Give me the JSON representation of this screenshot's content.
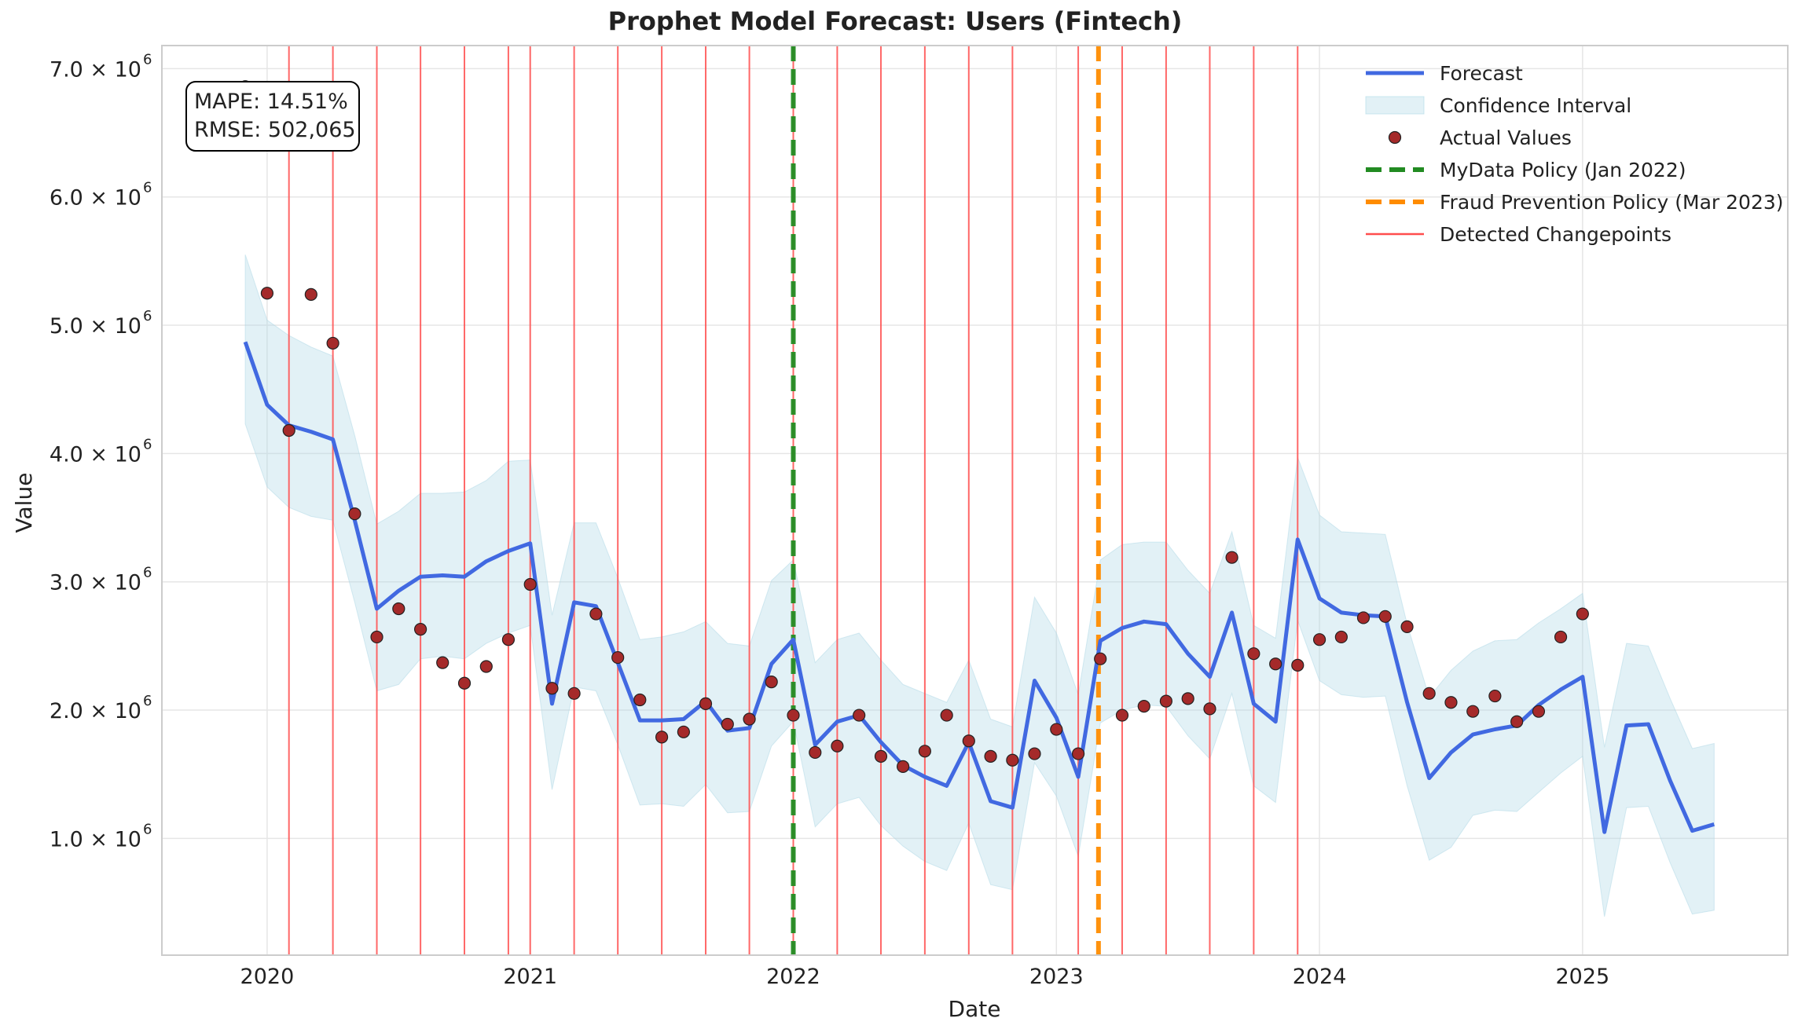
{
  "chart_data": {
    "type": "line",
    "title": "Prophet Model Forecast: Users (Fintech)",
    "xlabel": "Date",
    "ylabel": "Value",
    "xlim": [
      2019.6,
      2025.78
    ],
    "ylim": [
      90000,
      7180000
    ],
    "x_ticks": [
      {
        "value": 2020.0,
        "label": "2020"
      },
      {
        "value": 2021.0,
        "label": "2021"
      },
      {
        "value": 2022.0,
        "label": "2022"
      },
      {
        "value": 2023.0,
        "label": "2023"
      },
      {
        "value": 2024.0,
        "label": "2024"
      },
      {
        "value": 2025.0,
        "label": "2025"
      }
    ],
    "y_ticks": [
      {
        "value": 1000000,
        "label": "1.0 × 10",
        "exp": "6"
      },
      {
        "value": 2000000,
        "label": "2.0 × 10",
        "exp": "6"
      },
      {
        "value": 3000000,
        "label": "3.0 × 10",
        "exp": "6"
      },
      {
        "value": 4000000,
        "label": "4.0 × 10",
        "exp": "6"
      },
      {
        "value": 5000000,
        "label": "5.0 × 10",
        "exp": "6"
      },
      {
        "value": 6000000,
        "label": "6.0 × 10",
        "exp": "6"
      },
      {
        "value": 7000000,
        "label": "7.0 × 10",
        "exp": "6"
      }
    ],
    "series": [
      {
        "name": "Forecast",
        "color": "#4169e1",
        "x": [
          2019.917,
          2020.0,
          2020.083,
          2020.167,
          2020.25,
          2020.333,
          2020.417,
          2020.5,
          2020.583,
          2020.667,
          2020.75,
          2020.833,
          2020.917,
          2021.0,
          2021.083,
          2021.167,
          2021.25,
          2021.333,
          2021.417,
          2021.5,
          2021.583,
          2021.667,
          2021.75,
          2021.833,
          2021.917,
          2022.0,
          2022.083,
          2022.167,
          2022.25,
          2022.333,
          2022.417,
          2022.5,
          2022.583,
          2022.667,
          2022.75,
          2022.833,
          2022.917,
          2023.0,
          2023.083,
          2023.167,
          2023.25,
          2023.333,
          2023.417,
          2023.5,
          2023.583,
          2023.667,
          2023.75,
          2023.833,
          2023.917,
          2024.0,
          2024.083,
          2024.167,
          2024.25,
          2024.333,
          2024.417,
          2024.5,
          2024.583,
          2024.667,
          2024.75,
          2024.833,
          2024.917,
          2025.0,
          2025.083,
          2025.167,
          2025.25,
          2025.333,
          2025.417,
          2025.5
        ],
        "y": [
          4870000,
          4380000,
          4220000,
          4170000,
          4110000,
          3480000,
          2790000,
          2930000,
          3040000,
          3050000,
          3040000,
          3160000,
          3240000,
          3300000,
          2050000,
          2840000,
          2810000,
          2370000,
          1920000,
          1920000,
          1930000,
          2070000,
          1840000,
          1860000,
          2360000,
          2550000,
          1730000,
          1910000,
          1960000,
          1750000,
          1570000,
          1480000,
          1410000,
          1750000,
          1290000,
          1240000,
          2230000,
          1940000,
          1480000,
          2540000,
          2640000,
          2690000,
          2670000,
          2440000,
          2260000,
          2760000,
          2050000,
          1910000,
          3330000,
          2870000,
          2760000,
          2740000,
          2730000,
          2060000,
          1470000,
          1670000,
          1810000,
          1850000,
          1880000,
          2040000,
          2160000,
          2260000,
          1050000,
          1880000,
          1890000,
          1450000,
          1060000,
          1110000
        ]
      },
      {
        "name": "Confidence Interval",
        "color": "#add8e6",
        "x": [
          2019.917,
          2020.0,
          2020.083,
          2020.167,
          2020.25,
          2020.333,
          2020.417,
          2020.5,
          2020.583,
          2020.667,
          2020.75,
          2020.833,
          2020.917,
          2021.0,
          2021.083,
          2021.167,
          2021.25,
          2021.333,
          2021.417,
          2021.5,
          2021.583,
          2021.667,
          2021.75,
          2021.833,
          2021.917,
          2022.0,
          2022.083,
          2022.167,
          2022.25,
          2022.333,
          2022.417,
          2022.5,
          2022.583,
          2022.667,
          2022.75,
          2022.833,
          2022.917,
          2023.0,
          2023.083,
          2023.167,
          2023.25,
          2023.333,
          2023.417,
          2023.5,
          2023.583,
          2023.667,
          2023.75,
          2023.833,
          2023.917,
          2024.0,
          2024.083,
          2024.167,
          2024.25,
          2024.333,
          2024.417,
          2024.5,
          2024.583,
          2024.667,
          2024.75,
          2024.833,
          2024.917,
          2025.0,
          2025.083,
          2025.167,
          2025.25,
          2025.333,
          2025.417,
          2025.5
        ],
        "lower": [
          4230000,
          3740000,
          3580000,
          3510000,
          3480000,
          2840000,
          2150000,
          2200000,
          2400000,
          2420000,
          2400000,
          2520000,
          2600000,
          2660000,
          1380000,
          2180000,
          2150000,
          1730000,
          1260000,
          1270000,
          1250000,
          1420000,
          1200000,
          1210000,
          1720000,
          1910000,
          1090000,
          1270000,
          1320000,
          1100000,
          940000,
          820000,
          750000,
          1120000,
          640000,
          600000,
          1590000,
          1330000,
          860000,
          1900000,
          2000000,
          2040000,
          2030000,
          1800000,
          1620000,
          2130000,
          1410000,
          1280000,
          2700000,
          2230000,
          2120000,
          2100000,
          2110000,
          1410000,
          830000,
          930000,
          1180000,
          1220000,
          1210000,
          1360000,
          1510000,
          1640000,
          390000,
          1240000,
          1250000,
          810000,
          410000,
          440000
        ],
        "upper": [
          5550000,
          5040000,
          4920000,
          4830000,
          4760000,
          4140000,
          3450000,
          3550000,
          3690000,
          3690000,
          3700000,
          3790000,
          3940000,
          3950000,
          2740000,
          3460000,
          3460000,
          3030000,
          2550000,
          2570000,
          2610000,
          2690000,
          2520000,
          2500000,
          3010000,
          3170000,
          2370000,
          2550000,
          2600000,
          2390000,
          2200000,
          2130000,
          2060000,
          2390000,
          1930000,
          1870000,
          2880000,
          2600000,
          2120000,
          3170000,
          3290000,
          3310000,
          3310000,
          3090000,
          2910000,
          3390000,
          2660000,
          2560000,
          3970000,
          3520000,
          3390000,
          3380000,
          3370000,
          2670000,
          2100000,
          2310000,
          2460000,
          2540000,
          2550000,
          2680000,
          2790000,
          2910000,
          1710000,
          2520000,
          2500000,
          2090000,
          1700000,
          1740000
        ]
      },
      {
        "name": "Actual Values",
        "color": "#a52a2a",
        "x": [
          2019.917,
          2020.0,
          2020.083,
          2020.167,
          2020.25,
          2020.333,
          2020.417,
          2020.5,
          2020.583,
          2020.667,
          2020.75,
          2020.833,
          2020.917,
          2021.0,
          2021.083,
          2021.167,
          2021.25,
          2021.333,
          2021.417,
          2021.5,
          2021.583,
          2021.667,
          2021.75,
          2021.833,
          2021.917,
          2022.0,
          2022.083,
          2022.167,
          2022.25,
          2022.333,
          2022.417,
          2022.5,
          2022.583,
          2022.667,
          2022.75,
          2022.833,
          2022.917,
          2023.0,
          2023.083,
          2023.167,
          2023.25,
          2023.333,
          2023.417,
          2023.5,
          2023.583,
          2023.667,
          2023.75,
          2023.833,
          2023.917,
          2024.0,
          2024.083,
          2024.167,
          2024.25,
          2024.333,
          2024.417,
          2024.5,
          2024.583,
          2024.667,
          2024.75,
          2024.833,
          2024.917,
          2025.0
        ],
        "y": [
          6860000,
          5250000,
          4180000,
          5240000,
          4860000,
          3530000,
          2570000,
          2790000,
          2630000,
          2370000,
          2210000,
          2340000,
          2550000,
          2980000,
          2170000,
          2130000,
          2750000,
          2410000,
          2080000,
          1790000,
          1830000,
          2050000,
          1890000,
          1930000,
          2220000,
          1960000,
          1670000,
          1720000,
          1960000,
          1640000,
          1560000,
          1680000,
          1960000,
          1760000,
          1640000,
          1610000,
          1660000,
          1850000,
          1660000,
          2400000,
          1960000,
          2030000,
          2070000,
          2090000,
          2010000,
          3190000,
          2440000,
          2360000,
          2350000,
          2550000,
          2570000,
          2720000,
          2730000,
          2650000,
          2130000,
          2060000,
          1990000,
          2110000,
          1910000,
          1990000,
          2570000,
          2750000
        ]
      }
    ],
    "changepoints": [
      2020.083,
      2020.25,
      2020.417,
      2020.583,
      2020.75,
      2020.917,
      2021.0,
      2021.167,
      2021.333,
      2021.5,
      2021.667,
      2021.833,
      2022.0,
      2022.167,
      2022.333,
      2022.5,
      2022.667,
      2022.833,
      2023.083,
      2023.25,
      2023.417,
      2023.583,
      2023.75,
      2023.917
    ],
    "policy_lines": [
      {
        "name": "MyData Policy (Jan 2022)",
        "x": 2022.0,
        "color": "#228b22"
      },
      {
        "name": "Fraud Prevention Policy (Mar 2023)",
        "x": 2023.16,
        "color": "#ff8c00"
      }
    ],
    "legend": {
      "placement": "top-right",
      "entries": [
        {
          "label": "Forecast",
          "kind": "line",
          "color": "#4169e1"
        },
        {
          "label": "Confidence Interval",
          "kind": "patch",
          "color": "#add8e6"
        },
        {
          "label": "Actual Values",
          "kind": "marker",
          "color": "#a52a2a"
        },
        {
          "label": "MyData Policy (Jan 2022)",
          "kind": "dashed",
          "color": "#228b22"
        },
        {
          "label": "Fraud Prevention Policy (Mar 2023)",
          "kind": "dashed",
          "color": "#ff8c00"
        },
        {
          "label": "Detected Changepoints",
          "kind": "thin",
          "color": "#ff4d4d"
        }
      ]
    },
    "metrics": {
      "mape": "MAPE: 14.51%",
      "rmse": "RMSE: 502,065"
    }
  }
}
